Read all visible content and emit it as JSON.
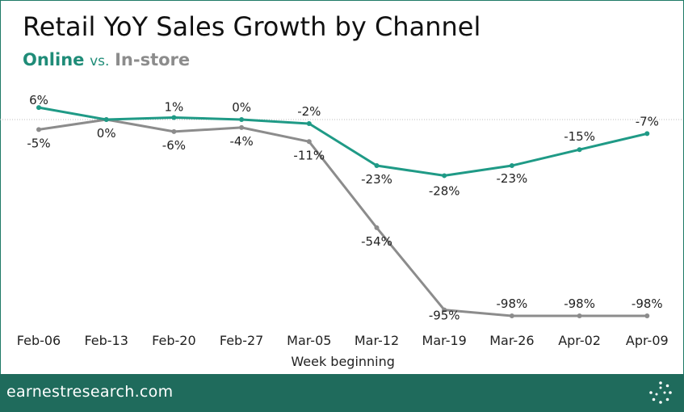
{
  "header": {
    "title": "Retail YoY Sales Growth by Channel",
    "subtitle_online": "Online",
    "subtitle_vs": "vs.",
    "subtitle_instore": "In-store"
  },
  "footer": {
    "brand": "earnestresearch.com",
    "logo_icon": "dotted-circle-logo-icon"
  },
  "colors": {
    "online": "#1f9a86",
    "instore": "#8c8c8c",
    "brand": "#1f6b5c"
  },
  "chart_data": {
    "type": "line",
    "title": "Retail YoY Sales Growth by Channel",
    "xlabel": "Week beginning",
    "ylabel": "",
    "ylim": [
      -100,
      8
    ],
    "grid": false,
    "zero_line": "dotted",
    "categories": [
      "Feb-06",
      "Feb-13",
      "Feb-20",
      "Feb-27",
      "Mar-05",
      "Mar-12",
      "Mar-19",
      "Mar-26",
      "Apr-02",
      "Apr-09"
    ],
    "series": [
      {
        "name": "Online",
        "values": [
          6,
          0,
          1,
          0,
          -2,
          -23,
          -28,
          -23,
          -15,
          -7
        ],
        "labels": [
          "6%",
          "0%",
          "1%",
          "0%",
          "-2%",
          "-23%",
          "-28%",
          "-23%",
          "-15%",
          "-7%"
        ]
      },
      {
        "name": "In-store",
        "values": [
          -5,
          0,
          -6,
          -4,
          -11,
          -54,
          -95,
          -98,
          -98,
          -98
        ],
        "labels": [
          "-5%",
          "0%",
          "-6%",
          "-4%",
          "-11%",
          "-54%",
          "-95%",
          "-98%",
          "-98%",
          "-98%"
        ]
      }
    ]
  }
}
